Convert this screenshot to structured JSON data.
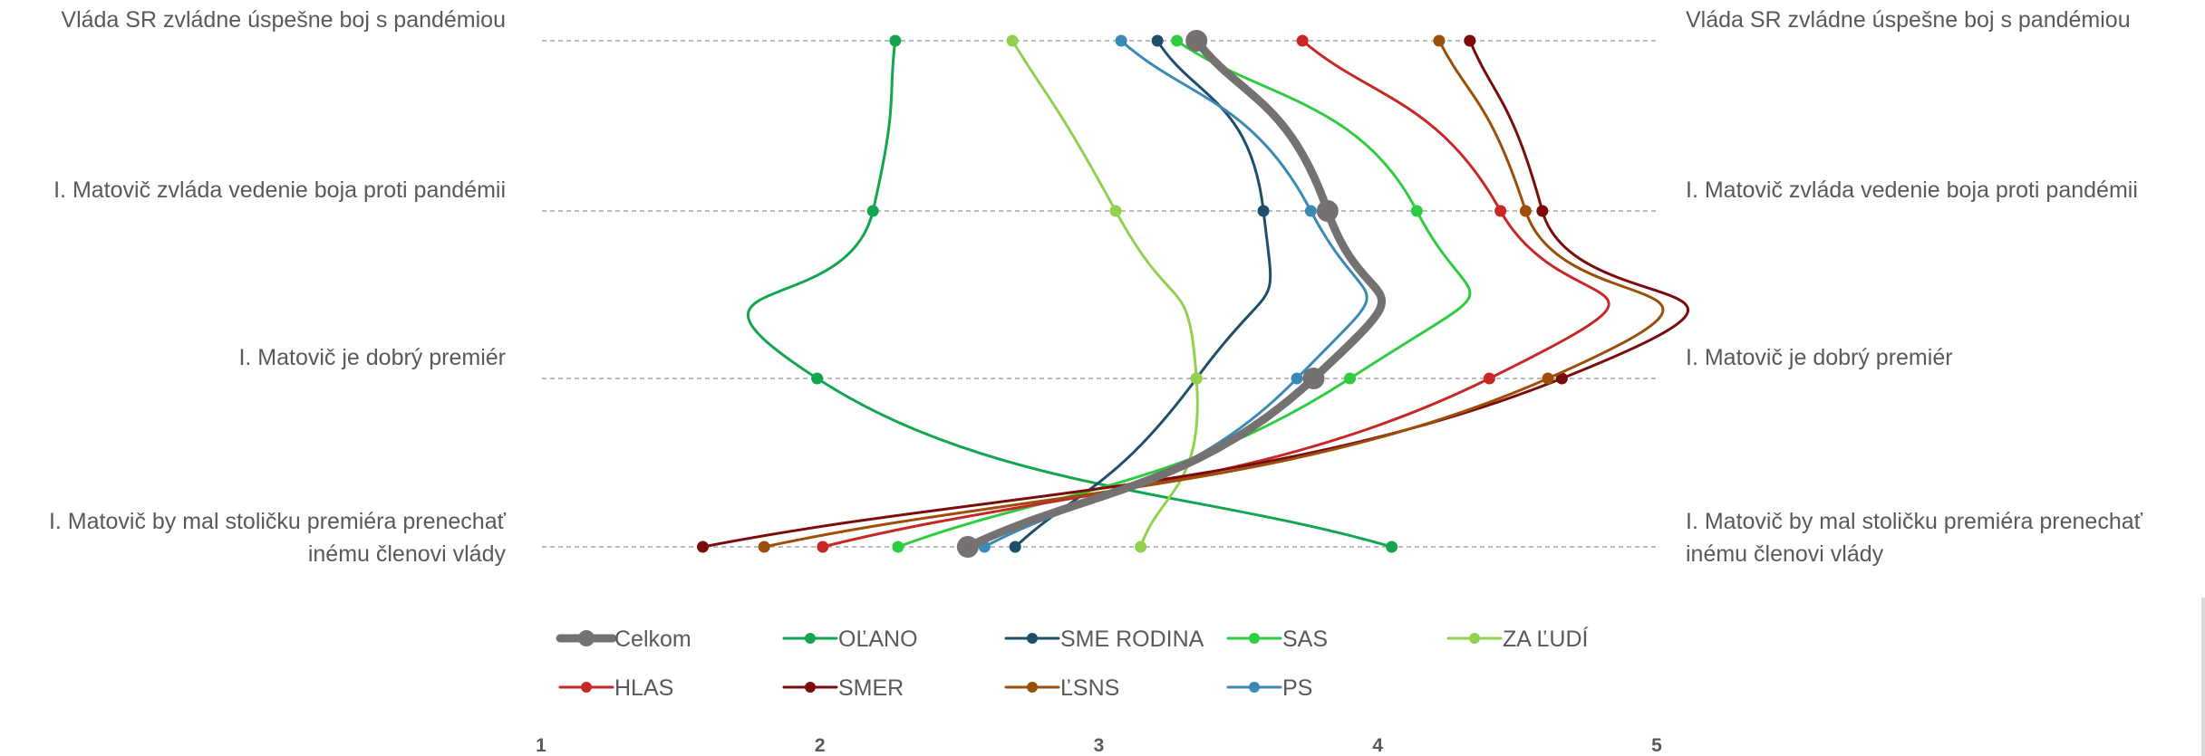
{
  "chart_data": {
    "type": "line",
    "title": "",
    "xlabel": "",
    "ylabel": "",
    "xlim": [
      1,
      5
    ],
    "x_ticks": [
      "1",
      "2",
      "3",
      "4",
      "5"
    ],
    "categories": [
      "Vláda SR zvládne úspešne boj s pandémiou",
      "I. Matovič zvláda vedenie boja proti pandémii",
      "I. Matovič je dobrý premiér",
      "I. Matovič by mal stoličku premiéra prenechať inému členovi vlády"
    ],
    "category_lines_left": [
      [
        "Vláda SR zvládne úspešne boj s pandémiou"
      ],
      [
        "I. Matovič zvláda vedenie boja proti pandémii"
      ],
      [
        "I. Matovič je dobrý premiér"
      ],
      [
        "I. Matovič by mal stoličku premiéra prenechať",
        "inému členovi vlády"
      ]
    ],
    "category_lines_right": [
      [
        "Vláda SR zvládne úspešne boj s pandémiou"
      ],
      [
        "I. Matovič zvláda vedenie boja proti pandémii"
      ],
      [
        "I. Matovič je dobrý premiér"
      ],
      [
        "I. Matovič by mal stoličku premiéra prenechať",
        "inému členovi vlády"
      ]
    ],
    "grid": true,
    "legend_position": "bottom",
    "series": [
      {
        "name": "Celkom",
        "color": "#767171",
        "emphasis": true,
        "values": [
          3.35,
          3.82,
          3.77,
          2.53
        ]
      },
      {
        "name": "OĽANO",
        "color": "#13a54f",
        "values": [
          2.27,
          2.19,
          1.99,
          4.05
        ]
      },
      {
        "name": "SME RODINA",
        "color": "#1f4e6b",
        "values": [
          3.21,
          3.59,
          3.35,
          2.7
        ]
      },
      {
        "name": "SAS",
        "color": "#2ecc40",
        "values": [
          3.28,
          4.14,
          3.9,
          2.28
        ]
      },
      {
        "name": "ZA ĽUDÍ",
        "color": "#92d050",
        "values": [
          2.69,
          3.06,
          3.35,
          3.15
        ]
      },
      {
        "name": "HLAS",
        "color": "#c62828",
        "values": [
          3.73,
          4.44,
          4.4,
          2.01
        ]
      },
      {
        "name": "SMER",
        "color": "#7b0c0c",
        "values": [
          4.33,
          4.59,
          4.66,
          1.58
        ]
      },
      {
        "name": "ĽSNS",
        "color": "#9c4f0a",
        "values": [
          4.22,
          4.53,
          4.61,
          1.8
        ]
      },
      {
        "name": "PS",
        "color": "#3a8ab5",
        "values": [
          3.08,
          3.76,
          3.71,
          2.59
        ]
      }
    ]
  }
}
